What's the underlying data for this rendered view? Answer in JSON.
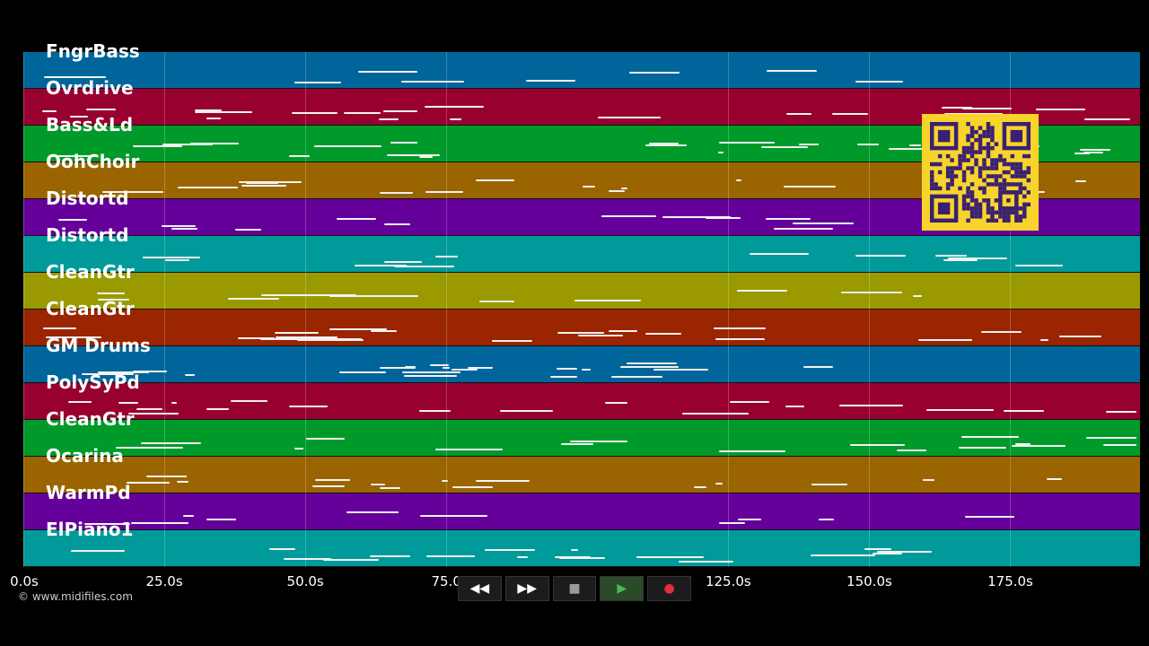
{
  "tracks": [
    {
      "label": "FngrBass",
      "color": "#00659a"
    },
    {
      "label": "Ovrdrive",
      "color": "#980030"
    },
    {
      "label": "Bass&Ld",
      "color": "#009a2a"
    },
    {
      "label": "OohChoir",
      "color": "#9a6500"
    },
    {
      "label": "Distortd",
      "color": "#65009a"
    },
    {
      "label": "Distortd",
      "color": "#009a9a"
    },
    {
      "label": "CleanGtr",
      "color": "#9a9a00"
    },
    {
      "label": "CleanGtr",
      "color": "#9a2500"
    },
    {
      "label": "GM Drums",
      "color": "#00659a"
    },
    {
      "label": "PolySyPd",
      "color": "#980030"
    },
    {
      "label": "CleanGtr",
      "color": "#009a2a"
    },
    {
      "label": "Ocarina",
      "color": "#9a6500"
    },
    {
      "label": "WarmPd",
      "color": "#65009a"
    },
    {
      "label": "ElPiano1",
      "color": "#009a9a"
    }
  ],
  "axis": {
    "ticks": [
      "0.0s",
      "25.0s",
      "50.0s",
      "75.0",
      "125.0s",
      "150.0s",
      "175.0s"
    ],
    "tick_seconds": [
      0,
      25,
      50,
      75,
      125,
      150,
      175
    ],
    "max_seconds": 198
  },
  "copyright": "© www.midifiles.com",
  "transport": {
    "rewind": "◀◀",
    "forward": "▶▶",
    "stop": "■",
    "play": "▶",
    "record": "●"
  },
  "colors": {
    "play": "#4fb84f",
    "record": "#e0303a",
    "stop": "#9a9a9a",
    "qr_bg": "#f7d42b",
    "qr_fg": "#3a2070"
  }
}
